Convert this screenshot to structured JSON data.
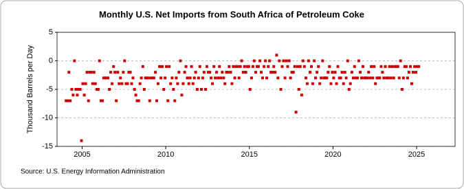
{
  "chart_data": {
    "type": "scatter",
    "title": "Monthly U.S. Net Imports from South Africa of Petroleum Coke",
    "y_label": "Thousand Barrels per Day",
    "source": "Source: U.S. Energy Information Administration",
    "color": "#cc0000",
    "xlim": [
      2003.5,
      2027.3
    ],
    "xticks": [
      2005,
      2010,
      2015,
      2020,
      2025
    ],
    "ylim": [
      -15,
      5
    ],
    "yticks": [
      -15,
      -10,
      -5,
      0,
      5
    ],
    "grid": true,
    "x": [
      2004.04,
      2004.13,
      2004.21,
      2004.29,
      2004.38,
      2004.46,
      2004.54,
      2004.63,
      2004.71,
      2004.79,
      2004.88,
      2004.96,
      2005.04,
      2005.13,
      2005.21,
      2005.29,
      2005.38,
      2005.46,
      2005.54,
      2005.63,
      2005.71,
      2005.79,
      2005.88,
      2005.96,
      2006.04,
      2006.13,
      2006.21,
      2006.29,
      2006.38,
      2006.46,
      2006.54,
      2006.63,
      2006.71,
      2006.79,
      2006.88,
      2006.96,
      2007.04,
      2007.13,
      2007.21,
      2007.29,
      2007.38,
      2007.46,
      2007.54,
      2007.63,
      2007.71,
      2007.79,
      2007.88,
      2007.96,
      2008.04,
      2008.13,
      2008.21,
      2008.29,
      2008.38,
      2008.46,
      2008.54,
      2008.63,
      2008.71,
      2008.79,
      2008.88,
      2008.96,
      2009.04,
      2009.13,
      2009.21,
      2009.29,
      2009.38,
      2009.46,
      2009.54,
      2009.63,
      2009.71,
      2009.79,
      2009.88,
      2009.96,
      2010.04,
      2010.13,
      2010.21,
      2010.29,
      2010.38,
      2010.46,
      2010.54,
      2010.63,
      2010.71,
      2010.79,
      2010.88,
      2010.96,
      2011.04,
      2011.13,
      2011.21,
      2011.29,
      2011.38,
      2011.46,
      2011.54,
      2011.63,
      2011.71,
      2011.79,
      2011.88,
      2011.96,
      2012.04,
      2012.13,
      2012.21,
      2012.29,
      2012.38,
      2012.46,
      2012.54,
      2012.63,
      2012.71,
      2012.79,
      2012.88,
      2012.96,
      2013.04,
      2013.13,
      2013.21,
      2013.29,
      2013.38,
      2013.46,
      2013.54,
      2013.63,
      2013.71,
      2013.79,
      2013.88,
      2013.96,
      2014.04,
      2014.13,
      2014.21,
      2014.29,
      2014.38,
      2014.46,
      2014.54,
      2014.63,
      2014.71,
      2014.79,
      2014.88,
      2014.96,
      2015.04,
      2015.13,
      2015.21,
      2015.29,
      2015.38,
      2015.46,
      2015.54,
      2015.63,
      2015.71,
      2015.79,
      2015.88,
      2015.96,
      2016.04,
      2016.13,
      2016.21,
      2016.29,
      2016.38,
      2016.46,
      2016.54,
      2016.63,
      2016.71,
      2016.79,
      2016.88,
      2016.96,
      2017.04,
      2017.13,
      2017.21,
      2017.29,
      2017.38,
      2017.46,
      2017.54,
      2017.63,
      2017.71,
      2017.79,
      2017.88,
      2017.96,
      2018.04,
      2018.13,
      2018.21,
      2018.29,
      2018.38,
      2018.46,
      2018.54,
      2018.63,
      2018.71,
      2018.79,
      2018.88,
      2018.96,
      2019.04,
      2019.13,
      2019.21,
      2019.29,
      2019.38,
      2019.46,
      2019.54,
      2019.63,
      2019.71,
      2019.79,
      2019.88,
      2019.96,
      2020.04,
      2020.13,
      2020.21,
      2020.29,
      2020.38,
      2020.46,
      2020.54,
      2020.63,
      2020.71,
      2020.79,
      2020.88,
      2020.96,
      2021.04,
      2021.13,
      2021.21,
      2021.29,
      2021.38,
      2021.46,
      2021.54,
      2021.63,
      2021.71,
      2021.79,
      2021.88,
      2021.96,
      2022.04,
      2022.13,
      2022.21,
      2022.29,
      2022.38,
      2022.46,
      2022.54,
      2022.63,
      2022.71,
      2022.79,
      2022.88,
      2022.96,
      2023.04,
      2023.13,
      2023.21,
      2023.29,
      2023.38,
      2023.46,
      2023.54,
      2023.63,
      2023.71,
      2023.79,
      2023.88,
      2023.96,
      2024.04,
      2024.13,
      2024.21,
      2024.29,
      2024.38,
      2024.46,
      2024.54,
      2024.63,
      2024.71,
      2024.79,
      2024.88,
      2024.96,
      2025.04,
      2025.13
    ],
    "values": [
      -7,
      -7,
      -2,
      -7,
      -5,
      -6,
      0,
      -5,
      -6,
      -5,
      -5,
      -14,
      -4,
      -6,
      -4,
      -2,
      -7,
      -2,
      -2,
      -4,
      -2,
      -4,
      -5,
      -5,
      0,
      -7,
      -7,
      -3,
      -3,
      -3,
      -3,
      -5,
      -2,
      -4,
      -1,
      -2,
      -7,
      -2,
      -4,
      -3,
      -4,
      -2,
      0,
      -4,
      -4,
      -2,
      -2,
      -4,
      -3,
      -5,
      -6,
      -7,
      -7,
      -4,
      -3,
      -1,
      -5,
      -3,
      -3,
      -3,
      -7,
      -3,
      -3,
      -3,
      -2,
      -7,
      -4,
      -1,
      -3,
      -1,
      -5,
      -3,
      -1,
      -7,
      -1,
      -4,
      -3,
      -5,
      -7,
      -3,
      -4,
      -2,
      0,
      -6,
      -4,
      -2,
      -1,
      -3,
      -4,
      -3,
      -1,
      -4,
      -3,
      -2,
      -5,
      -3,
      -1,
      -5,
      -3,
      -2,
      -5,
      -1,
      -2,
      -2,
      -3,
      -4,
      -1,
      -3,
      -2,
      -3,
      -1,
      -3,
      -2,
      -3,
      -4,
      -2,
      -2,
      -1,
      -2,
      -4,
      -1,
      -3,
      -1,
      -1,
      -3,
      -1,
      0,
      -2,
      -1,
      -2,
      -1,
      -1,
      -5,
      -3,
      -1,
      0,
      -2,
      -1,
      -1,
      0,
      -2,
      -3,
      -1,
      0,
      -3,
      -1,
      0,
      -2,
      -2,
      -1,
      -2,
      1,
      -3,
      0,
      -5,
      -1,
      0,
      -3,
      0,
      -1,
      0,
      -3,
      -2,
      -2,
      -1,
      -9,
      -1,
      -5,
      -1,
      -6,
      0,
      -1,
      -3,
      -4,
      0,
      -2,
      -1,
      -4,
      0,
      -3,
      -2,
      -1,
      -4,
      -3,
      0,
      -3,
      -3,
      -3,
      -2,
      -1,
      -4,
      -2,
      -3,
      -2,
      -4,
      -1,
      -3,
      -3,
      -2,
      -4,
      -2,
      -3,
      0,
      -5,
      -4,
      -2,
      -3,
      -1,
      -3,
      -3,
      0,
      -2,
      -3,
      -1,
      -3,
      -3,
      -3,
      -2,
      -3,
      -1,
      -3,
      -1,
      -4,
      -3,
      -3,
      -3,
      -1,
      -2,
      -3,
      -1,
      -3,
      -3,
      -1,
      -3,
      -1,
      -3,
      -1,
      -1,
      -1,
      -3,
      0,
      -5,
      -3,
      -1,
      -1,
      -3,
      -2,
      -1,
      -4,
      -2,
      -1,
      -2,
      -1,
      -1
    ]
  }
}
